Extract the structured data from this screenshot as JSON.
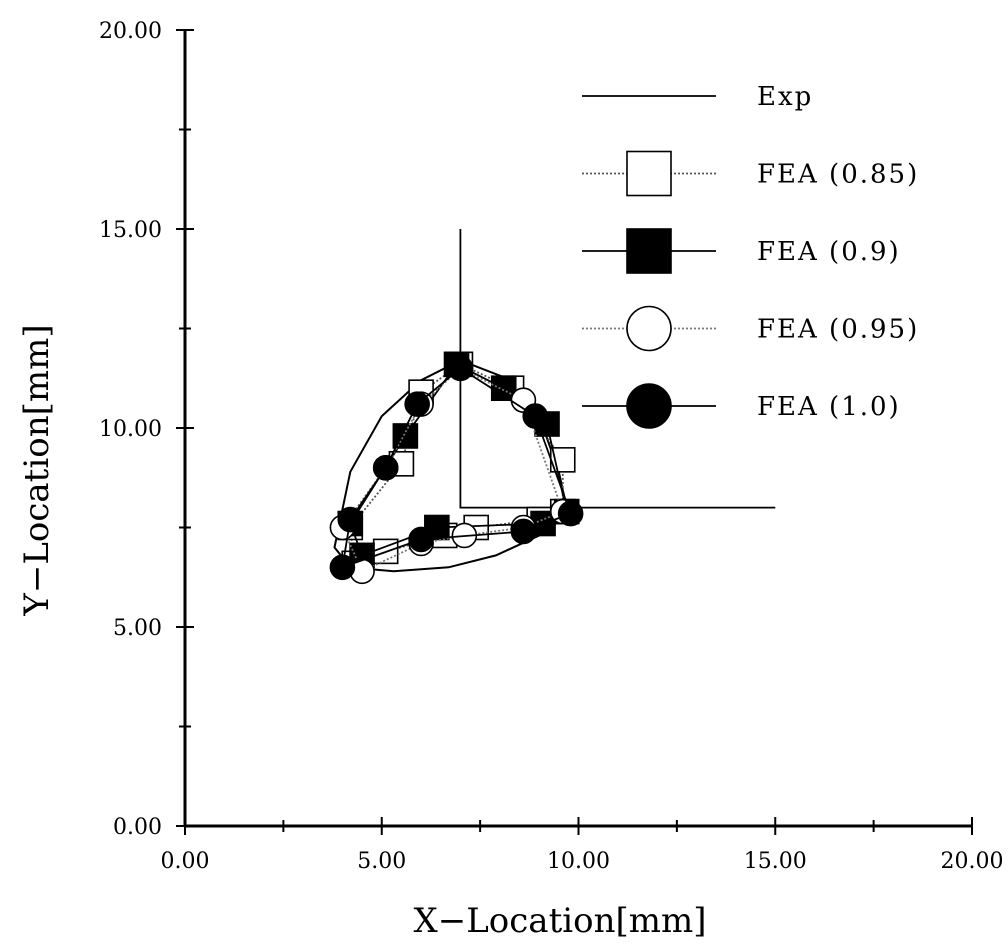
{
  "chart_data": {
    "type": "line",
    "xlabel": "X−Location[mm]",
    "ylabel": "Y−Location[mm]",
    "xlim": [
      0,
      20
    ],
    "ylim": [
      0,
      20
    ],
    "x_ticks": [
      "0.00",
      "5.00",
      "10.00",
      "15.00",
      "20.00"
    ],
    "y_ticks": [
      "0.00",
      "5.00",
      "10.00",
      "15.00",
      "20.00"
    ],
    "grid": false,
    "legend_position": "top-right",
    "series": [
      {
        "name": "Exp",
        "marker": "none",
        "line": "solid",
        "color": "#000000",
        "points": [
          [
            7.0,
            15.0
          ],
          [
            7.0,
            8.0
          ],
          [
            15.0,
            8.0
          ]
        ],
        "curve": [
          [
            9.7,
            8.0
          ],
          [
            9.5,
            8.9
          ],
          [
            9.0,
            10.3
          ],
          [
            8.3,
            11.2
          ],
          [
            7.0,
            11.7
          ],
          [
            6.0,
            11.2
          ],
          [
            5.0,
            10.3
          ],
          [
            4.2,
            8.9
          ],
          [
            3.8,
            7.0
          ],
          [
            4.2,
            6.5
          ],
          [
            5.3,
            6.4
          ],
          [
            6.7,
            6.5
          ],
          [
            7.9,
            6.8
          ],
          [
            9.0,
            7.3
          ],
          [
            9.7,
            8.0
          ]
        ]
      },
      {
        "name": "FEA (0.85)",
        "marker": "open-square",
        "line": "dotted",
        "color": "#555555",
        "points": [
          [
            9.6,
            9.2
          ],
          [
            8.3,
            11.0
          ],
          [
            7.0,
            11.6
          ],
          [
            6.0,
            10.9
          ],
          [
            5.5,
            9.1
          ],
          [
            4.2,
            7.5
          ],
          [
            4.3,
            6.6
          ],
          [
            5.1,
            6.9
          ],
          [
            6.6,
            7.3
          ],
          [
            7.4,
            7.5
          ],
          [
            9.0,
            7.7
          ],
          [
            9.6,
            7.9
          ],
          [
            9.6,
            9.2
          ]
        ]
      },
      {
        "name": "FEA (0.9)",
        "marker": "filled-square",
        "line": "solid",
        "color": "#000000",
        "points": [
          [
            9.7,
            7.9
          ],
          [
            9.2,
            10.1
          ],
          [
            8.1,
            11.0
          ],
          [
            6.9,
            11.6
          ],
          [
            5.6,
            9.8
          ],
          [
            4.2,
            7.6
          ],
          [
            4.5,
            6.8
          ],
          [
            6.4,
            7.5
          ],
          [
            9.1,
            7.6
          ],
          [
            9.7,
            7.9
          ]
        ]
      },
      {
        "name": "FEA (0.95)",
        "marker": "open-circle",
        "line": "dotted",
        "color": "#777777",
        "points": [
          [
            9.6,
            7.9
          ],
          [
            8.6,
            10.7
          ],
          [
            7.0,
            11.5
          ],
          [
            6.0,
            10.6
          ],
          [
            5.1,
            9.0
          ],
          [
            4.0,
            7.5
          ],
          [
            4.5,
            6.4
          ],
          [
            6.0,
            7.1
          ],
          [
            7.1,
            7.3
          ],
          [
            8.6,
            7.5
          ],
          [
            9.6,
            7.9
          ]
        ]
      },
      {
        "name": "FEA (1.0)",
        "marker": "filled-circle",
        "line": "solid",
        "color": "#000000",
        "points": [
          [
            9.8,
            7.85
          ],
          [
            8.9,
            10.3
          ],
          [
            7.0,
            11.5
          ],
          [
            5.9,
            10.6
          ],
          [
            5.1,
            9.0
          ],
          [
            4.2,
            7.7
          ],
          [
            4.0,
            6.5
          ],
          [
            6.0,
            7.2
          ],
          [
            8.6,
            7.4
          ],
          [
            9.8,
            7.85
          ]
        ]
      }
    ]
  }
}
